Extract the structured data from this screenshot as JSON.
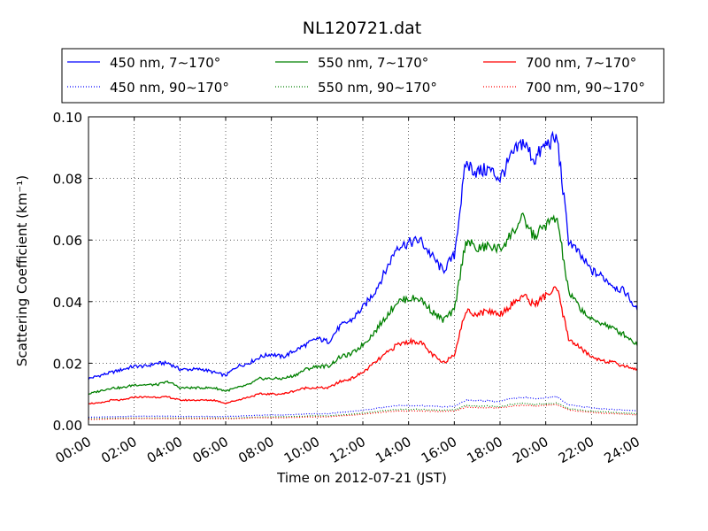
{
  "chart_data": {
    "type": "line",
    "title": "NL120721.dat",
    "xlabel": "Time on 2012-07-21 (JST)",
    "ylabel": "Scattering Coefficient (km⁻¹)",
    "xlim": [
      0,
      24
    ],
    "ylim": [
      0,
      0.1
    ],
    "grid": true,
    "legend_position": "top",
    "x_ticks": [
      "00:00",
      "02:00",
      "04:00",
      "06:00",
      "08:00",
      "10:00",
      "12:00",
      "14:00",
      "16:00",
      "18:00",
      "20:00",
      "22:00",
      "24:00"
    ],
    "y_ticks": [
      "0.00",
      "0.02",
      "0.04",
      "0.06",
      "0.08",
      "0.10"
    ],
    "x_hours": [
      0,
      0.5,
      1,
      1.5,
      2,
      2.5,
      3,
      3.5,
      4,
      4.5,
      5,
      5.5,
      6,
      6.5,
      7,
      7.5,
      8,
      8.5,
      9,
      9.5,
      10,
      10.5,
      11,
      11.5,
      12,
      12.5,
      13,
      13.5,
      14,
      14.5,
      15,
      15.5,
      16,
      16.5,
      17,
      17.5,
      18,
      18.5,
      19,
      19.5,
      20,
      20.5,
      21,
      21.5,
      22,
      22.5,
      23,
      23.5,
      24
    ],
    "series": [
      {
        "name": "450 nm, 7∼170°",
        "color": "#0000ff",
        "style": "solid",
        "values": [
          0.015,
          0.016,
          0.017,
          0.018,
          0.019,
          0.019,
          0.02,
          0.02,
          0.018,
          0.018,
          0.018,
          0.017,
          0.016,
          0.019,
          0.02,
          0.022,
          0.023,
          0.022,
          0.024,
          0.026,
          0.028,
          0.027,
          0.032,
          0.034,
          0.038,
          0.043,
          0.05,
          0.058,
          0.059,
          0.06,
          0.055,
          0.05,
          0.055,
          0.085,
          0.082,
          0.083,
          0.08,
          0.087,
          0.092,
          0.086,
          0.091,
          0.093,
          0.06,
          0.055,
          0.05,
          0.048,
          0.045,
          0.043,
          0.037
        ]
      },
      {
        "name": "450 nm, 90∼170°",
        "color": "#0000ff",
        "style": "dotted",
        "values": [
          0.0025,
          0.0025,
          0.0026,
          0.0027,
          0.0028,
          0.0028,
          0.0028,
          0.0028,
          0.0027,
          0.0027,
          0.0027,
          0.0027,
          0.0027,
          0.0028,
          0.003,
          0.0031,
          0.0032,
          0.0032,
          0.0033,
          0.0035,
          0.0036,
          0.0036,
          0.004,
          0.0043,
          0.0048,
          0.0052,
          0.0058,
          0.0062,
          0.0062,
          0.0062,
          0.006,
          0.0058,
          0.006,
          0.008,
          0.0078,
          0.0078,
          0.0075,
          0.0085,
          0.009,
          0.0085,
          0.0088,
          0.009,
          0.0065,
          0.006,
          0.0055,
          0.0052,
          0.005,
          0.0048,
          0.0045
        ]
      },
      {
        "name": "550 nm, 7∼170°",
        "color": "#008000",
        "style": "solid",
        "values": [
          0.01,
          0.011,
          0.012,
          0.012,
          0.013,
          0.013,
          0.013,
          0.014,
          0.012,
          0.012,
          0.012,
          0.012,
          0.011,
          0.012,
          0.013,
          0.015,
          0.015,
          0.015,
          0.016,
          0.018,
          0.019,
          0.019,
          0.022,
          0.023,
          0.026,
          0.03,
          0.035,
          0.04,
          0.041,
          0.041,
          0.037,
          0.034,
          0.037,
          0.06,
          0.057,
          0.058,
          0.057,
          0.062,
          0.067,
          0.061,
          0.065,
          0.067,
          0.043,
          0.038,
          0.034,
          0.033,
          0.031,
          0.029,
          0.026
        ]
      },
      {
        "name": "550 nm, 90∼170°",
        "color": "#008000",
        "style": "dotted",
        "values": [
          0.002,
          0.002,
          0.0021,
          0.0022,
          0.0022,
          0.0022,
          0.0022,
          0.0022,
          0.0022,
          0.0022,
          0.0022,
          0.0022,
          0.0022,
          0.0022,
          0.0024,
          0.0025,
          0.0026,
          0.0026,
          0.0027,
          0.0028,
          0.0029,
          0.0029,
          0.0032,
          0.0034,
          0.0038,
          0.0042,
          0.0047,
          0.005,
          0.005,
          0.005,
          0.0048,
          0.0047,
          0.0049,
          0.0062,
          0.0061,
          0.0061,
          0.0059,
          0.0066,
          0.007,
          0.0066,
          0.0068,
          0.007,
          0.0052,
          0.0048,
          0.0044,
          0.0042,
          0.004,
          0.0038,
          0.0035
        ]
      },
      {
        "name": "700 nm, 7∼170°",
        "color": "#ff0000",
        "style": "solid",
        "values": [
          0.007,
          0.007,
          0.008,
          0.008,
          0.009,
          0.009,
          0.009,
          0.009,
          0.008,
          0.008,
          0.008,
          0.008,
          0.007,
          0.008,
          0.009,
          0.01,
          0.01,
          0.01,
          0.011,
          0.012,
          0.012,
          0.012,
          0.014,
          0.015,
          0.017,
          0.02,
          0.023,
          0.026,
          0.027,
          0.027,
          0.023,
          0.02,
          0.023,
          0.037,
          0.036,
          0.037,
          0.036,
          0.039,
          0.042,
          0.039,
          0.042,
          0.044,
          0.028,
          0.025,
          0.022,
          0.021,
          0.02,
          0.019,
          0.018
        ]
      },
      {
        "name": "700 nm, 90∼170°",
        "color": "#ff0000",
        "style": "dotted",
        "values": [
          0.0018,
          0.0018,
          0.0019,
          0.002,
          0.002,
          0.002,
          0.002,
          0.002,
          0.002,
          0.002,
          0.002,
          0.002,
          0.002,
          0.002,
          0.0022,
          0.0023,
          0.0023,
          0.0023,
          0.0024,
          0.0025,
          0.0026,
          0.0026,
          0.0029,
          0.0031,
          0.0034,
          0.0038,
          0.0042,
          0.0045,
          0.0045,
          0.0045,
          0.0044,
          0.0043,
          0.0045,
          0.0057,
          0.0056,
          0.0056,
          0.0055,
          0.006,
          0.0064,
          0.0061,
          0.0063,
          0.0065,
          0.0048,
          0.0044,
          0.004,
          0.0038,
          0.0036,
          0.0034,
          0.0032
        ]
      }
    ]
  }
}
